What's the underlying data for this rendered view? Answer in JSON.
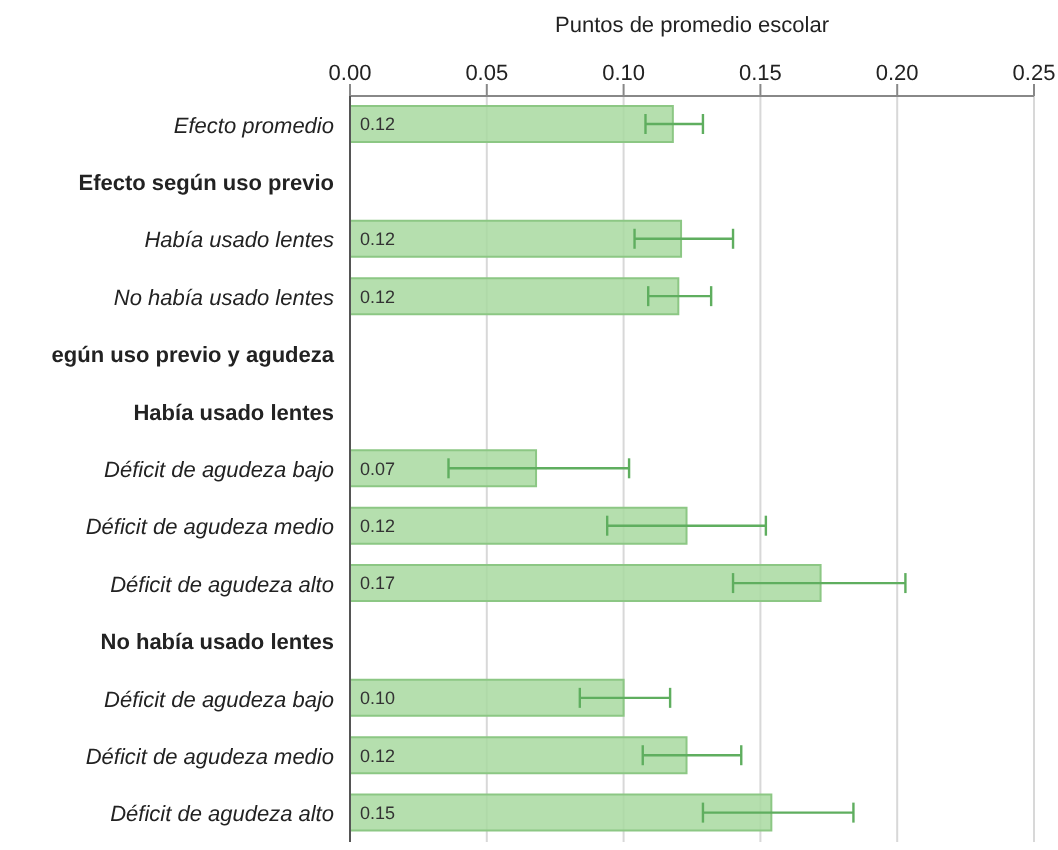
{
  "chart_data": {
    "type": "bar",
    "orientation": "horizontal",
    "xlabel": "Puntos de promedio escolar",
    "categories": [
      "Efecto promedio",
      "Efecto según uso previo",
      "Había usado lentes",
      "No había usado lentes",
      "egún uso previo y agudeza",
      "Había usado lentes",
      "Déficit de agudeza bajo",
      "Déficit de agudeza medio",
      "Déficit de agudeza alto",
      "No había usado lentes",
      "Déficit de agudeza bajo",
      "Déficit de agudeza medio",
      "Déficit de agudeza alto"
    ],
    "values": [
      0.118,
      null,
      0.121,
      0.12,
      null,
      null,
      0.068,
      0.123,
      0.172,
      null,
      0.1,
      0.123,
      0.154
    ],
    "value_labels": [
      "0.12",
      null,
      "0.12",
      "0.12",
      null,
      null,
      "0.07",
      "0.12",
      "0.17",
      null,
      "0.10",
      "0.12",
      "0.15"
    ],
    "errors": [
      [
        0.108,
        0.129
      ],
      null,
      [
        0.104,
        0.14
      ],
      [
        0.109,
        0.132
      ],
      null,
      null,
      [
        0.036,
        0.102
      ],
      [
        0.094,
        0.152
      ],
      [
        0.14,
        0.203
      ],
      null,
      [
        0.084,
        0.117
      ],
      [
        0.107,
        0.143
      ],
      [
        0.129,
        0.184
      ]
    ],
    "color": "#a8d9a0",
    "xlim": [
      0,
      0.25
    ],
    "xticks": [
      {
        "value": 0,
        "label": "0.00"
      },
      {
        "value": 0.05,
        "label": "0.05"
      },
      {
        "value": 0.1,
        "label": "0.10"
      },
      {
        "value": 0.15,
        "label": "0.15"
      },
      {
        "value": 0.2,
        "label": "0.20"
      },
      {
        "value": 0.25,
        "label": "0.25"
      }
    ],
    "grid": "x"
  }
}
